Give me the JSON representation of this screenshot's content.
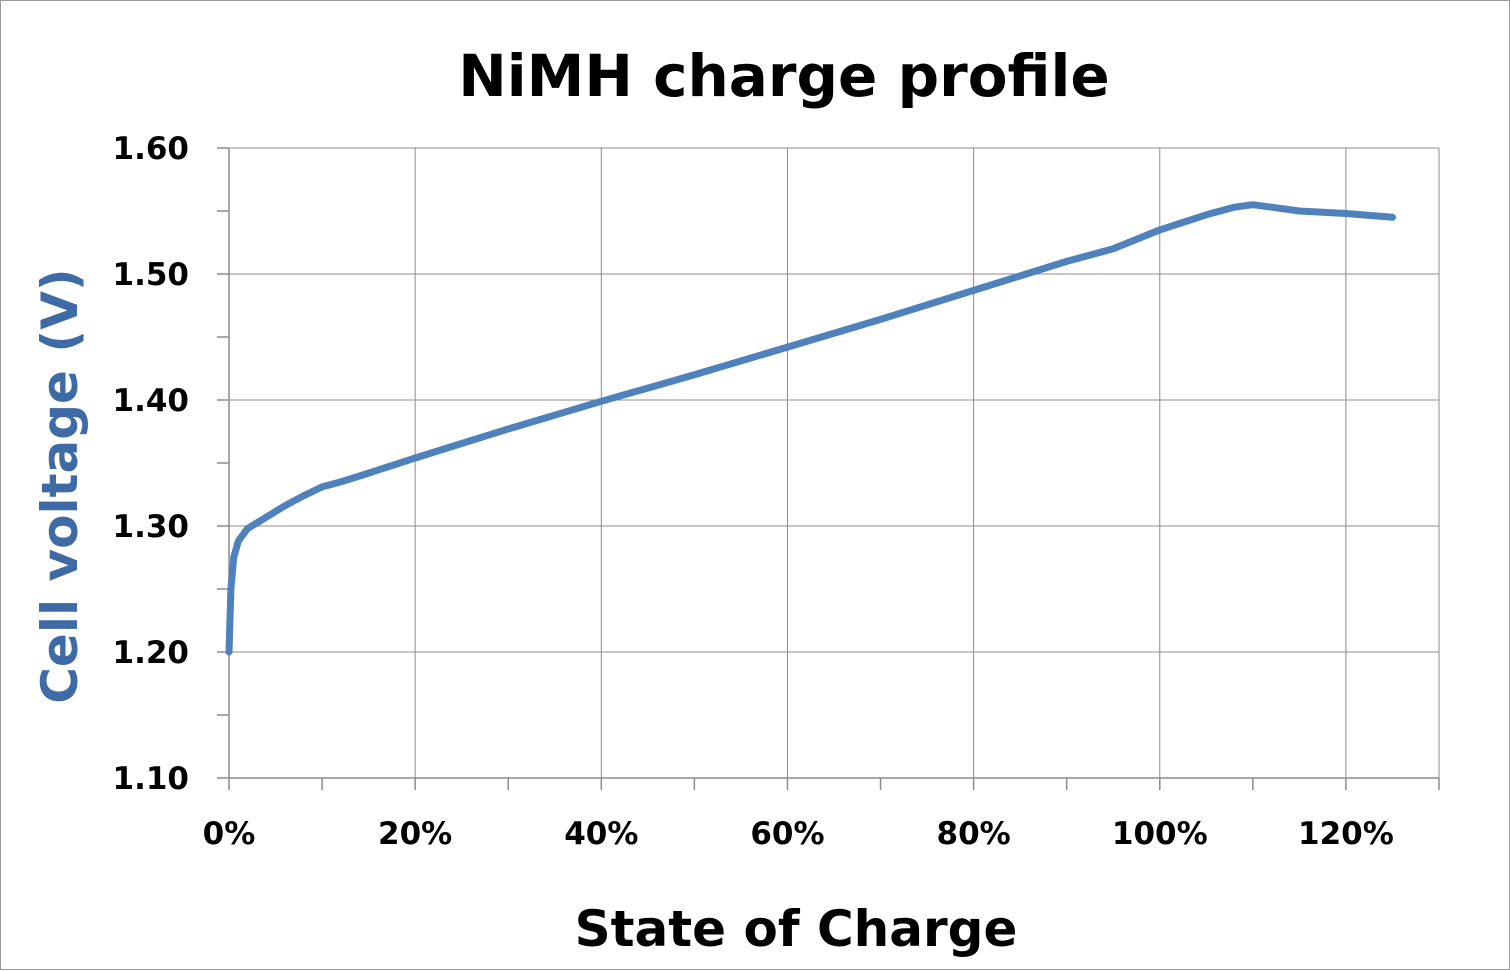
{
  "chart_data": {
    "type": "line",
    "title": "NiMH charge profile",
    "xlabel": "State of Charge",
    "ylabel": "Cell voltage (V)",
    "xlim": [
      0,
      130
    ],
    "ylim": [
      1.1,
      1.6
    ],
    "x_ticks": [
      0,
      20,
      40,
      60,
      80,
      100,
      120
    ],
    "x_tick_labels": [
      "0%",
      "20%",
      "40%",
      "60%",
      "80%",
      "100%",
      "120%"
    ],
    "y_ticks": [
      1.1,
      1.2,
      1.3,
      1.4,
      1.5,
      1.6
    ],
    "y_tick_labels": [
      "1.10",
      "1.20",
      "1.30",
      "1.40",
      "1.50",
      "1.60"
    ],
    "grid": true,
    "legend": "none",
    "colors": {
      "series": "#4f81bd",
      "ylabel": "#3e6aa6",
      "grid": "#8c8c8c"
    },
    "series": [
      {
        "x": [
          0,
          0.2,
          0.5,
          1,
          2,
          4,
          6,
          8,
          10,
          12,
          15,
          20,
          30,
          40,
          50,
          60,
          70,
          80,
          90,
          95,
          100,
          105,
          108,
          110,
          112,
          115,
          120,
          125
        ],
        "y": [
          1.2,
          1.25,
          1.275,
          1.288,
          1.298,
          1.307,
          1.316,
          1.324,
          1.331,
          1.335,
          1.342,
          1.354,
          1.377,
          1.399,
          1.42,
          1.442,
          1.464,
          1.487,
          1.51,
          1.52,
          1.535,
          1.547,
          1.553,
          1.555,
          1.553,
          1.55,
          1.548,
          1.545
        ]
      }
    ]
  }
}
